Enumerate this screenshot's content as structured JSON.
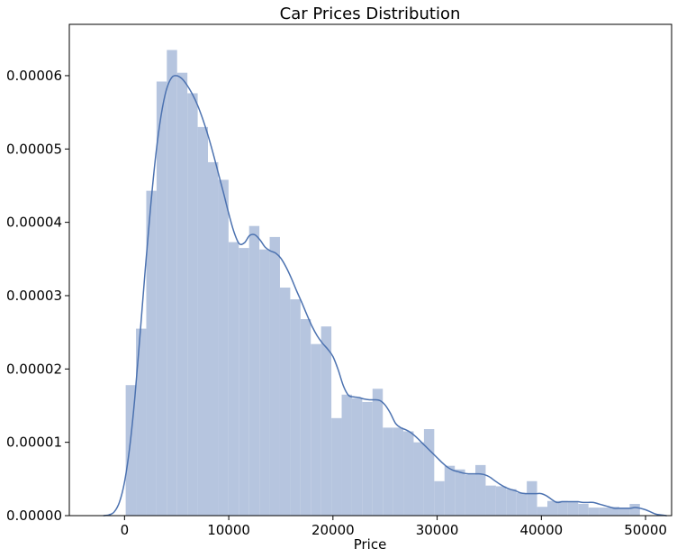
{
  "chart_data": {
    "type": "bar",
    "title": "Car Prices Distribution",
    "xlabel": "Price",
    "ylabel": "",
    "xlim": [
      -5300,
      52500
    ],
    "ylim": [
      0,
      6.7e-05
    ],
    "xticks": [
      0,
      10000,
      20000,
      30000,
      40000,
      50000
    ],
    "yticks": [
      0.0,
      1e-05,
      2e-05,
      3e-05,
      4e-05,
      5e-05,
      6e-05
    ],
    "xtick_labels": [
      "0",
      "10000",
      "20000",
      "30000",
      "40000",
      "50000"
    ],
    "ytick_labels": [
      "0.00000",
      "0.00001",
      "0.00002",
      "0.00003",
      "0.00004",
      "0.00005",
      "0.00006"
    ],
    "grid": false,
    "legend": "none",
    "histogram": {
      "bin_edges": [
        110,
        1097,
        2084,
        3071,
        4058,
        5045,
        6032,
        7019,
        8006,
        8993,
        9980,
        10967,
        11954,
        12941,
        13928,
        14915,
        15902,
        16889,
        17876,
        18863,
        19850,
        20837,
        21824,
        22811,
        23798,
        24785,
        25772,
        26759,
        27746,
        28733,
        29720,
        30707,
        31694,
        32681,
        33668,
        34655,
        35642,
        36629,
        37616,
        38603,
        39590,
        40577,
        41564,
        42551,
        43538,
        44525,
        45512,
        46499,
        47486,
        48473,
        49460
      ],
      "densities": [
        1.78e-05,
        2.55e-05,
        4.43e-05,
        5.92e-05,
        6.35e-05,
        6.04e-05,
        5.76e-05,
        5.3e-05,
        4.82e-05,
        4.58e-05,
        3.73e-05,
        3.65e-05,
        3.95e-05,
        3.63e-05,
        3.8e-05,
        3.11e-05,
        2.95e-05,
        2.68e-05,
        2.34e-05,
        2.58e-05,
        1.33e-05,
        1.65e-05,
        1.6e-05,
        1.55e-05,
        1.73e-05,
        1.2e-05,
        1.2e-05,
        1.15e-05,
        1e-05,
        1.18e-05,
        4.7e-06,
        6.8e-06,
        6.3e-06,
        5.6e-06,
        6.9e-06,
        4.1e-06,
        4e-06,
        3.6e-06,
        3.1e-06,
        4.7e-06,
        1.2e-06,
        2e-06,
        2e-06,
        1.9e-06,
        1.6e-06,
        1.1e-06,
        1.1e-06,
        1.2e-06,
        1.1e-06,
        1.6e-06
      ]
    },
    "kde": {
      "x": [
        -2000,
        -1500,
        -1000,
        -500,
        0,
        500,
        1000,
        1500,
        2000,
        2500,
        3000,
        3500,
        4000,
        4500,
        5000,
        5500,
        6000,
        6500,
        7000,
        7500,
        8000,
        8500,
        9000,
        9500,
        10000,
        10500,
        11000,
        11500,
        12000,
        12500,
        13000,
        13500,
        14000,
        14500,
        15000,
        15500,
        16000,
        16500,
        17000,
        17500,
        18000,
        18500,
        19000,
        19500,
        20000,
        20500,
        21000,
        21500,
        22000,
        22500,
        23000,
        23500,
        24000,
        24500,
        25000,
        25500,
        26000,
        26500,
        27000,
        27500,
        28000,
        28500,
        29000,
        29500,
        30000,
        30500,
        31000,
        31500,
        32000,
        32500,
        33000,
        33500,
        34000,
        34500,
        35000,
        35500,
        36000,
        36500,
        37000,
        37500,
        38000,
        38500,
        39000,
        39500,
        40000,
        40500,
        41000,
        41500,
        42000,
        42500,
        43000,
        43500,
        44000,
        44500,
        45000,
        45500,
        46000,
        46500,
        47000,
        47500,
        48000,
        48500,
        49000,
        49500,
        50000,
        50500,
        51000,
        51500,
        52000
      ],
      "y": [
        0.0,
        1e-07,
        5e-07,
        1.8e-06,
        4.6e-06,
        9.4e-06,
        1.63e-05,
        2.49e-05,
        3.38e-05,
        4.21e-05,
        4.92e-05,
        5.45e-05,
        5.8e-05,
        5.97e-05,
        6e-05,
        5.96e-05,
        5.87e-05,
        5.75e-05,
        5.6e-05,
        5.41e-05,
        5.19e-05,
        4.94e-05,
        4.67e-05,
        4.4e-05,
        4.12e-05,
        3.87e-05,
        3.71e-05,
        3.72e-05,
        3.82e-05,
        3.83e-05,
        3.76e-05,
        3.66e-05,
        3.61e-05,
        3.58e-05,
        3.51e-05,
        3.39e-05,
        3.24e-05,
        3.07e-05,
        2.91e-05,
        2.74e-05,
        2.58e-05,
        2.45e-05,
        2.35e-05,
        2.27e-05,
        2.17e-05,
        1.99e-05,
        1.77e-05,
        1.64e-05,
        1.62e-05,
        1.61e-05,
        1.59e-05,
        1.58e-05,
        1.58e-05,
        1.57e-05,
        1.51e-05,
        1.4e-05,
        1.26e-05,
        1.2e-05,
        1.17e-05,
        1.13e-05,
        1.07e-05,
        1e-05,
        9.3e-06,
        8.6e-06,
        7.9e-06,
        7.2e-06,
        6.6e-06,
        6.2e-06,
        6e-06,
        5.8e-06,
        5.7e-06,
        5.7e-06,
        5.7e-06,
        5.6e-06,
        5.3e-06,
        4.8e-06,
        4.3e-06,
        3.9e-06,
        3.6e-06,
        3.4e-06,
        3.1e-06,
        3e-06,
        3e-06,
        3e-06,
        3e-06,
        2.7e-06,
        2.2e-06,
        1.8e-06,
        1.9e-06,
        1.9e-06,
        1.9e-06,
        1.9e-06,
        1.8e-06,
        1.8e-06,
        1.8e-06,
        1.6e-06,
        1.4e-06,
        1.2e-06,
        1e-06,
        1e-06,
        1e-06,
        1e-06,
        1.1e-06,
        1e-06,
        8e-07,
        5e-07,
        2e-07,
        1e-07,
        0.0
      ]
    },
    "colors": {
      "background": "#ffffff",
      "axis": "#000000",
      "bar_fill": "#b6c5df",
      "kde_line": "#4c72b0",
      "text": "#000000"
    }
  }
}
